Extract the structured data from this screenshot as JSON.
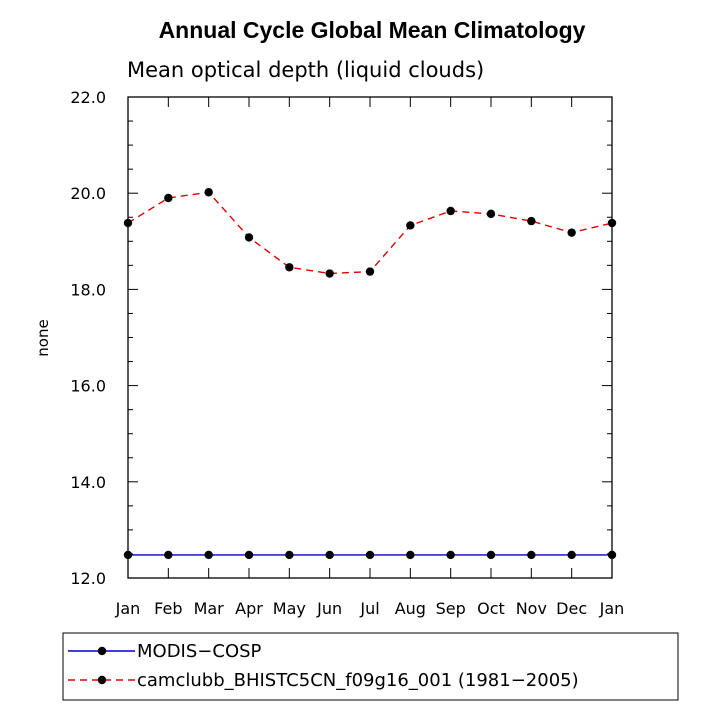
{
  "chart_data": {
    "type": "line",
    "title": "Annual Cycle Global Mean Climatology",
    "subtitle": "Mean optical depth (liquid clouds)",
    "xlabel": "",
    "ylabel": "none",
    "categories": [
      "Jan",
      "Feb",
      "Mar",
      "Apr",
      "May",
      "Jun",
      "Jul",
      "Aug",
      "Sep",
      "Oct",
      "Nov",
      "Dec",
      "Jan"
    ],
    "ylim": [
      12.0,
      22.0
    ],
    "yticks": [
      "12.0",
      "14.0",
      "16.0",
      "18.0",
      "20.0",
      "22.0"
    ],
    "yticks_values": [
      12,
      14,
      16,
      18,
      20,
      22
    ],
    "series": [
      {
        "name": "MODIS−COSP",
        "color": "#0000cc",
        "dash": "solid",
        "values": [
          12.48,
          12.48,
          12.48,
          12.48,
          12.48,
          12.48,
          12.48,
          12.48,
          12.48,
          12.48,
          12.48,
          12.48,
          12.48
        ]
      },
      {
        "name": "camclubb_BHISTC5CN_f09g16_001 (1981−2005)",
        "color": "#e00000",
        "dash": "dashed",
        "values": [
          19.38,
          19.9,
          20.02,
          19.08,
          18.46,
          18.33,
          18.37,
          19.33,
          19.63,
          19.57,
          19.42,
          19.18,
          19.38
        ]
      }
    ]
  }
}
